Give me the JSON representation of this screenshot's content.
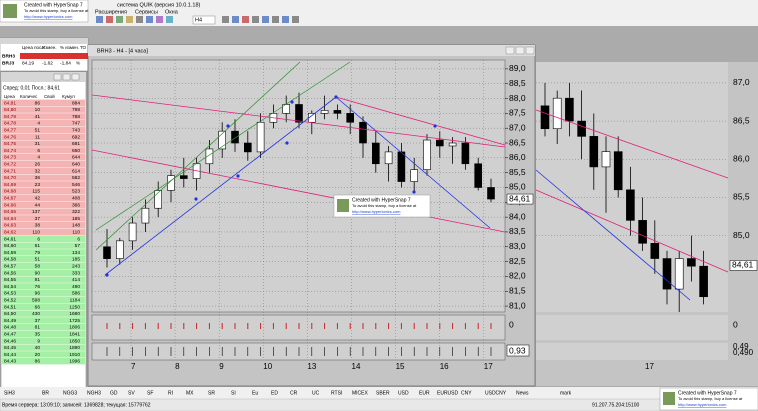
{
  "window_title": "система QUIK (версия 10.0.1.18)",
  "stamp": {
    "line1": "Created with HyperSnap 7",
    "line2": "To avoid this stamp, buy a license at",
    "line3": "http://www.hyperionics.com"
  },
  "menu": [
    "Расширения",
    "Сервисы",
    "Окна"
  ],
  "toolbar": {
    "interval": "H4"
  },
  "quotes": {
    "headers": [
      "Цена посл.",
      "Измен.",
      "% измен.",
      "ТО"
    ],
    "rows": [
      [
        "BRH3"
      ],
      [
        "BRJ3",
        "84,19",
        "-1,62",
        "-1,84",
        "%"
      ]
    ]
  },
  "order_book": {
    "spread": "Спред: 0,01 Посл.: 84,61",
    "headers": [
      "Цена",
      "Количес",
      "Свой",
      "Кумул"
    ],
    "sell": [
      [
        "84,81",
        86,
        884
      ],
      [
        "84,80",
        10,
        798
      ],
      [
        "84,79",
        41,
        788
      ],
      [
        "84,78",
        4,
        747
      ],
      [
        "84,77",
        51,
        743
      ],
      [
        "84,76",
        11,
        692
      ],
      [
        "84,75",
        31,
        681
      ],
      [
        "84,74",
        6,
        650
      ],
      [
        "84,73",
        4,
        644
      ],
      [
        "84,72",
        26,
        640
      ],
      [
        "84,71",
        32,
        614
      ],
      [
        "84,70",
        36,
        582
      ],
      [
        "84,69",
        23,
        546
      ],
      [
        "84,68",
        115,
        523
      ],
      [
        "84,67",
        42,
        408
      ],
      [
        "84,66",
        44,
        366
      ],
      [
        "84,65",
        137,
        322
      ],
      [
        "84,64",
        37,
        185
      ],
      [
        "84,63",
        38,
        148
      ],
      [
        "84,62",
        110,
        110
      ]
    ],
    "buy": [
      [
        "84,61",
        6,
        6
      ],
      [
        "84,60",
        51,
        57
      ],
      [
        "84,59",
        79,
        134
      ],
      [
        "84,58",
        51,
        185
      ],
      [
        "84,57",
        58,
        243
      ],
      [
        "84,56",
        90,
        333
      ],
      [
        "84,55",
        81,
        414
      ],
      [
        "84,54",
        76,
        490
      ],
      [
        "84,53",
        96,
        586
      ],
      [
        "84,52",
        598,
        1184
      ],
      [
        "84,51",
        66,
        1250
      ],
      [
        "84,50",
        430,
        1680
      ],
      [
        "84,49",
        37,
        1725
      ],
      [
        "84,48",
        81,
        1806
      ],
      [
        "84,47",
        35,
        1841
      ],
      [
        "84,46",
        9,
        1850
      ],
      [
        "84,45",
        40,
        1890
      ],
      [
        "84,44",
        20,
        1910
      ],
      [
        "84,43",
        86,
        1996
      ]
    ]
  },
  "chart": {
    "title": "BRH3 - H4 - [4 часа]",
    "ylim": [
      80.8,
      89.3
    ],
    "yticks": [
      {
        "value": 81,
        "label": "81,0"
      },
      {
        "value": 81.5,
        "label": "81,5"
      },
      {
        "value": 82,
        "label": "82,0"
      },
      {
        "value": 82.5,
        "label": "82,5"
      },
      {
        "value": 83,
        "label": "83,0"
      },
      {
        "value": 83.5,
        "label": "83,5"
      },
      {
        "value": 84,
        "label": "84,0"
      },
      {
        "value": 84.5,
        "label": "84,5"
      },
      {
        "value": 85,
        "label": "85,0"
      },
      {
        "value": 85.5,
        "label": "85,5"
      },
      {
        "value": 86,
        "label": "86,0"
      },
      {
        "value": 86.5,
        "label": "86,5"
      },
      {
        "value": 87,
        "label": "87,0"
      },
      {
        "value": 87.5,
        "label": "87,5"
      },
      {
        "value": 88,
        "label": "88,0"
      },
      {
        "value": 88.5,
        "label": "88,5"
      },
      {
        "value": 89,
        "label": "89,0"
      }
    ],
    "candles": [
      [
        83.0,
        83.6,
        82.3,
        82.6
      ],
      [
        82.6,
        83.3,
        82.4,
        83.2
      ],
      [
        83.2,
        84.0,
        82.9,
        83.8
      ],
      [
        83.8,
        84.6,
        83.5,
        84.3
      ],
      [
        84.3,
        85.2,
        84.0,
        84.9
      ],
      [
        84.9,
        85.6,
        84.5,
        85.4
      ],
      [
        85.4,
        86.0,
        85.0,
        85.3
      ],
      [
        85.3,
        86.0,
        84.9,
        85.8
      ],
      [
        85.8,
        86.6,
        85.5,
        86.3
      ],
      [
        86.3,
        87.2,
        86.0,
        86.9
      ],
      [
        86.9,
        87.3,
        86.2,
        86.5
      ],
      [
        86.5,
        86.9,
        85.9,
        86.2
      ],
      [
        86.2,
        87.5,
        86.0,
        87.2
      ],
      [
        87.2,
        87.8,
        87.0,
        87.5
      ],
      [
        87.5,
        88.1,
        87.2,
        87.8
      ],
      [
        87.8,
        88.2,
        87.0,
        87.2
      ],
      [
        87.2,
        87.6,
        86.8,
        87.5
      ],
      [
        87.5,
        88.1,
        87.3,
        87.6
      ],
      [
        87.6,
        87.8,
        87.3,
        87.5
      ],
      [
        87.5,
        87.8,
        86.8,
        87.2
      ],
      [
        87.2,
        87.4,
        86.0,
        86.5
      ],
      [
        86.5,
        86.9,
        85.5,
        85.8
      ],
      [
        85.8,
        86.4,
        85.2,
        86.2
      ],
      [
        86.2,
        86.5,
        85.0,
        85.2
      ],
      [
        85.2,
        86.0,
        84.8,
        85.6
      ],
      [
        85.6,
        86.8,
        85.4,
        86.6
      ],
      [
        86.6,
        86.9,
        86.0,
        86.4
      ],
      [
        86.4,
        86.7,
        85.8,
        86.5
      ],
      [
        86.5,
        86.7,
        85.6,
        85.8
      ],
      [
        85.8,
        86.0,
        84.9,
        85.0
      ],
      [
        85.0,
        85.3,
        84.5,
        84.61
      ]
    ],
    "last_price": {
      "value": 84.61,
      "label": "84,61"
    },
    "dates": [
      "7",
      "8",
      "9",
      "10",
      "13",
      "14",
      "15",
      "16",
      "17"
    ],
    "volume_label": "0",
    "indicator_label": "0,93"
  },
  "background_chart": {
    "ylim": [
      84.0,
      87.3
    ],
    "yticks": [
      {
        "value": 85,
        "label": "85,0"
      },
      {
        "value": 85.5,
        "label": "85,5"
      },
      {
        "value": 86,
        "label": "86,0"
      },
      {
        "value": 86.5,
        "label": "86,5"
      },
      {
        "value": 87,
        "label": "87,0"
      }
    ],
    "candles": [
      [
        86.7,
        87.0,
        86.3,
        86.4
      ],
      [
        86.4,
        86.9,
        86.2,
        86.8
      ],
      [
        86.8,
        87.0,
        86.3,
        86.5
      ],
      [
        86.5,
        86.9,
        86.0,
        86.3
      ],
      [
        86.3,
        86.6,
        85.6,
        85.9
      ],
      [
        85.9,
        86.3,
        85.3,
        86.1
      ],
      [
        86.1,
        86.3,
        85.5,
        85.6
      ],
      [
        85.6,
        85.9,
        85.0,
        85.2
      ],
      [
        85.2,
        85.5,
        84.8,
        84.9
      ],
      [
        84.9,
        85.2,
        84.5,
        84.7
      ],
      [
        84.7,
        84.8,
        84.1,
        84.3
      ],
      [
        84.3,
        84.8,
        84.0,
        84.7
      ],
      [
        84.7,
        85.0,
        84.4,
        84.6
      ],
      [
        84.6,
        84.8,
        84.1,
        84.2
      ]
    ],
    "last_price": {
      "value": 84.61,
      "label": "84,61"
    },
    "volume_label": "0",
    "indicator_labels": [
      "0,49",
      "0,490"
    ],
    "dates": [
      "17"
    ]
  },
  "tabs": [
    "SiH3",
    "BR",
    "NGG3",
    "NGH3",
    "GD",
    "SV",
    "SF",
    "RI",
    "MX",
    "SR",
    "SI",
    "Eu",
    "ED",
    "CR",
    "UC",
    "RTSI",
    "MICEX",
    "SBER",
    "USD",
    "EUR",
    "EURUSD",
    "CNY",
    "USDCNY",
    "News",
    "mark"
  ],
  "status": {
    "left": "Время сервера: 13:09:10; записей: 1369828; текущая: 15779762",
    "right": "91.207.75.204:15100"
  }
}
